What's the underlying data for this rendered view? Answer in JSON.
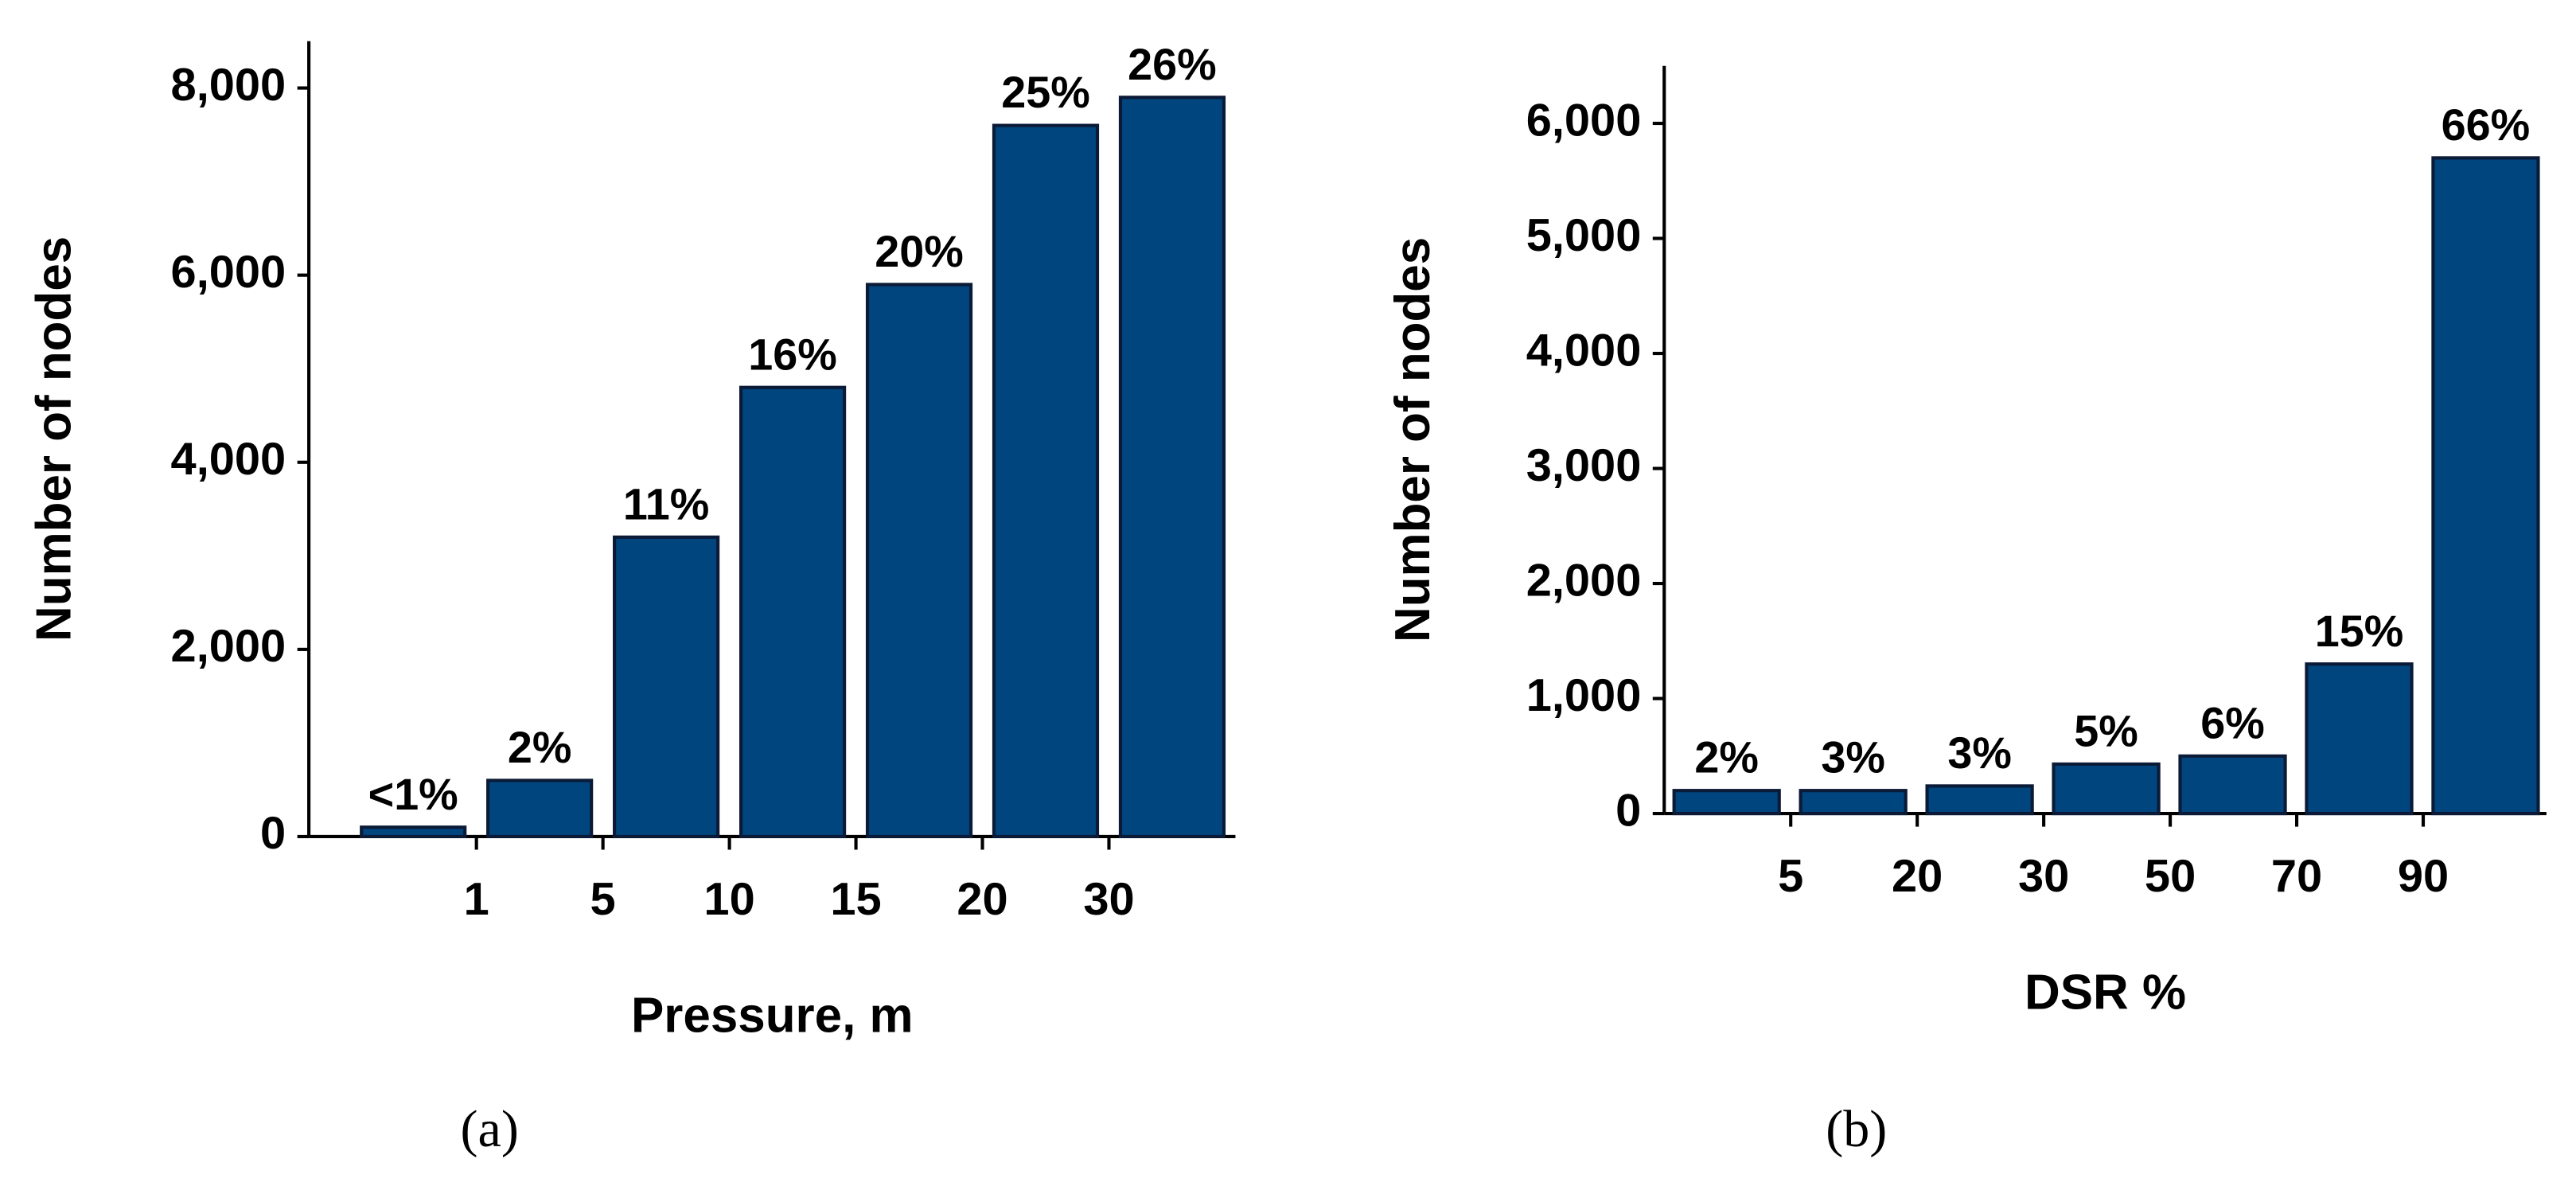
{
  "chart_data": [
    {
      "type": "bar",
      "caption": "(a)",
      "xlabel": "Pressure, m",
      "ylabel": "Number of nodes",
      "x_edge_labels": [
        "1",
        "5",
        "10",
        "15",
        "20",
        "30"
      ],
      "values": [
        100,
        600,
        3200,
        4800,
        5900,
        7600,
        7900
      ],
      "annotations": [
        "<1%",
        "2%",
        "11%",
        "16%",
        "20%",
        "25%",
        "26%"
      ],
      "color": "#00457e",
      "ylim": [
        0,
        8500
      ],
      "yticks": [
        0,
        {
          "value": 2000,
          "label": "2,000"
        },
        {
          "value": 4000,
          "label": "4,000"
        },
        {
          "value": 6000,
          "label": "6,000"
        },
        {
          "value": 8000,
          "label": "8,000"
        }
      ]
    },
    {
      "type": "bar",
      "caption": "(b)",
      "xlabel": "DSR %",
      "ylabel": "Number of nodes",
      "x_edge_labels": [
        "5",
        "20",
        "30",
        "50",
        "70",
        "90"
      ],
      "values": [
        200,
        200,
        240,
        430,
        500,
        1300,
        5700
      ],
      "annotations": [
        "2%",
        "3%",
        "3%",
        "5%",
        "6%",
        "15%",
        "66%"
      ],
      "color": "#00457e",
      "ylim": [
        0,
        6500
      ],
      "yticks": [
        0,
        {
          "value": 1000,
          "label": "1,000"
        },
        {
          "value": 2000,
          "label": "2,000"
        },
        {
          "value": 3000,
          "label": "3,000"
        },
        {
          "value": 4000,
          "label": "4,000"
        },
        {
          "value": 5000,
          "label": "5,000"
        },
        {
          "value": 6000,
          "label": "6,000"
        }
      ]
    }
  ]
}
